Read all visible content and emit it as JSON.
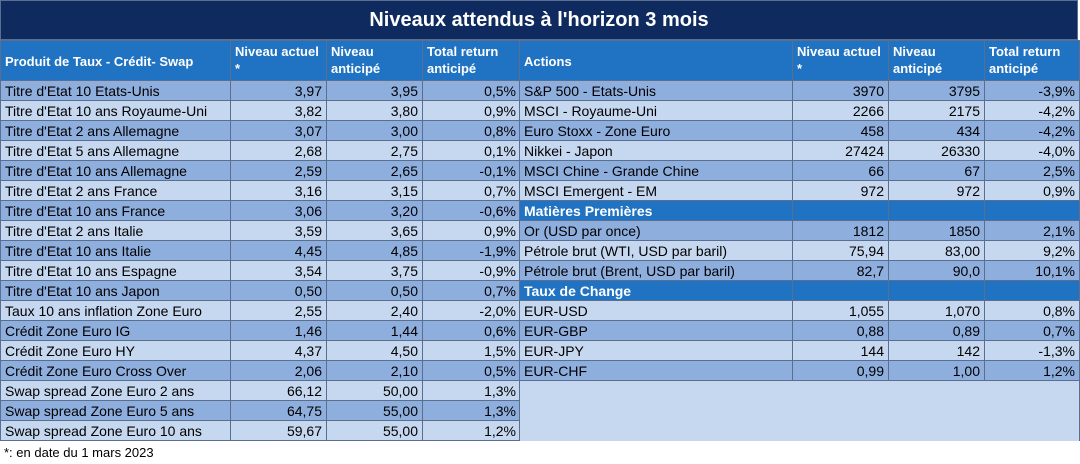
{
  "title": "Niveaux attendus à l'horizon 3 mois",
  "left": {
    "headers": [
      "Produit de Taux - Crédit- Swap",
      "Niveau actuel *",
      "Niveau anticipé",
      "Total return anticipé"
    ],
    "rows": [
      {
        "name": "Titre d'Etat 10 Etats-Unis",
        "current": "3,97",
        "expected": "3,95",
        "total": "0,5%"
      },
      {
        "name": "Titre d'Etat 10 ans Royaume-Uni",
        "current": "3,82",
        "expected": "3,80",
        "total": "0,9%"
      },
      {
        "name": "Titre d'Etat 2 ans Allemagne",
        "current": "3,07",
        "expected": "3,00",
        "total": "0,8%"
      },
      {
        "name": "Titre d'Etat 5 ans Allemagne",
        "current": "2,68",
        "expected": "2,75",
        "total": "0,1%"
      },
      {
        "name": "Titre d'Etat 10 ans Allemagne",
        "current": "2,59",
        "expected": "2,65",
        "total": "-0,1%"
      },
      {
        "name": "Titre d'Etat 2 ans France",
        "current": "3,16",
        "expected": "3,15",
        "total": "0,7%"
      },
      {
        "name": "Titre d'Etat 10 ans France",
        "current": "3,06",
        "expected": "3,20",
        "total": "-0,6%"
      },
      {
        "name": "Titre d'Etat 2 ans Italie",
        "current": "3,59",
        "expected": "3,65",
        "total": "0,9%"
      },
      {
        "name": "Titre d'Etat 10 ans Italie",
        "current": "4,45",
        "expected": "4,85",
        "total": "-1,9%"
      },
      {
        "name": "Titre d'Etat 10 ans Espagne",
        "current": "3,54",
        "expected": "3,75",
        "total": "-0,9%"
      },
      {
        "name": "Titre d'Etat 10 ans Japon",
        "current": "0,50",
        "expected": "0,50",
        "total": "0,7%"
      },
      {
        "name": "Taux 10 ans inflation Zone Euro",
        "current": "2,55",
        "expected": "2,40",
        "total": "-2,0%"
      },
      {
        "name": "Crédit Zone Euro IG",
        "current": "1,46",
        "expected": "1,44",
        "total": "0,6%"
      },
      {
        "name": "Crédit Zone Euro HY",
        "current": "4,37",
        "expected": "4,50",
        "total": "1,5%"
      },
      {
        "name": "Crédit Zone Euro Cross Over",
        "current": "2,06",
        "expected": "2,10",
        "total": "0,5%"
      },
      {
        "name": "Swap spread Zone Euro 2 ans",
        "current": "66,12",
        "expected": "50,00",
        "total": "1,3%"
      },
      {
        "name": "Swap spread Zone Euro 5 ans",
        "current": "64,75",
        "expected": "55,00",
        "total": "1,3%"
      },
      {
        "name": "Swap spread Zone Euro 10 ans",
        "current": "59,67",
        "expected": "55,00",
        "total": "1,2%"
      }
    ]
  },
  "right": {
    "headers": [
      "Actions",
      "Niveau actuel *",
      "Niveau anticipé",
      "Total return anticipé"
    ],
    "rows": [
      {
        "name": "S&P 500 - Etats-Unis",
        "current": "3970",
        "expected": "3795",
        "total": "-3,9%"
      },
      {
        "name": "MSCI - Royaume-Uni",
        "current": "2266",
        "expected": "2175",
        "total": "-4,2%"
      },
      {
        "name": "Euro Stoxx - Zone Euro",
        "current": "458",
        "expected": "434",
        "total": "-4,2%"
      },
      {
        "name": "Nikkei - Japon",
        "current": "27424",
        "expected": "26330",
        "total": "-4,0%"
      },
      {
        "name": "MSCI Chine - Grande Chine",
        "current": "66",
        "expected": "67",
        "total": "2,5%"
      },
      {
        "name": "MSCI Emergent - EM",
        "current": "972",
        "expected": "972",
        "total": "0,9%"
      },
      {
        "section": "Matières Premières"
      },
      {
        "name": "Or (USD par once)",
        "current": "1812",
        "expected": "1850",
        "total": "2,1%"
      },
      {
        "name": "Pétrole brut (WTI, USD par baril)",
        "current": "75,94",
        "expected": "83,00",
        "total": "9,2%"
      },
      {
        "name": "Pétrole brut (Brent, USD par baril)",
        "current": "82,7",
        "expected": "90,0",
        "total": "10,1%"
      },
      {
        "section": "Taux de Change"
      },
      {
        "name": "EUR-USD",
        "current": "1,055",
        "expected": "1,070",
        "total": "0,8%"
      },
      {
        "name": "EUR-GBP",
        "current": "0,88",
        "expected": "0,89",
        "total": "0,7%"
      },
      {
        "name": "EUR-JPY",
        "current": "144",
        "expected": "142",
        "total": "-1,3%"
      },
      {
        "name": "EUR-CHF",
        "current": "0,99",
        "expected": "1,00",
        "total": "1,2%"
      }
    ]
  },
  "footnote": "*: en date du 1 mars 2023",
  "colors": {
    "title_bg": "#0e2a5e",
    "header_bg": "#1f73c2",
    "row_dark": "#8eaede",
    "row_light": "#c6d7f0"
  }
}
